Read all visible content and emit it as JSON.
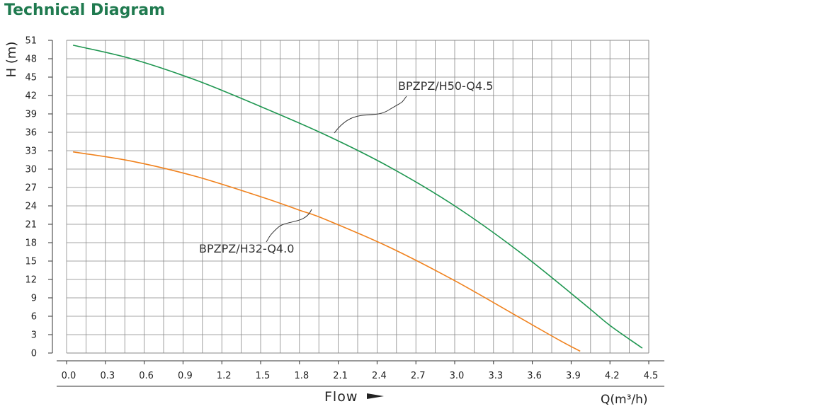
{
  "title": "Technical Diagram",
  "colors": {
    "title": "#1f7a4f",
    "grid": "#888888",
    "series_green": "#1e9650",
    "series_orange": "#f0821e"
  },
  "chart_data": {
    "type": "line",
    "title": "Technical Diagram",
    "ylabel": "H (m)",
    "xlabel": "Flow",
    "x_unit": "Q(m³/h)",
    "x_tick_labels": [
      "0.0",
      "0.3",
      "0.6",
      "0.9",
      "1.2",
      "1.5",
      "1.8",
      "2.1",
      "2.4",
      "2.7",
      "3.0",
      "3.3",
      "3.6",
      "3.9",
      "4.2",
      "4.5"
    ],
    "y_tick_labels": [
      "0",
      "3",
      "6",
      "9",
      "12",
      "15",
      "18",
      "21",
      "24",
      "27",
      "30",
      "33",
      "36",
      "39",
      "42",
      "45",
      "48",
      "51"
    ],
    "xlim": [
      0,
      4.5
    ],
    "ylim": [
      0,
      51
    ],
    "grid": true,
    "series": [
      {
        "name": "BPZPZ/H50-Q4.5",
        "x": [
          0.05,
          0.5,
          1.0,
          1.5,
          2.0,
          2.5,
          3.0,
          3.5,
          4.0,
          4.2,
          4.45
        ],
        "y": [
          50.2,
          48.0,
          44.5,
          40.2,
          35.6,
          30.3,
          24.0,
          16.5,
          8.0,
          4.5,
          0.8
        ]
      },
      {
        "name": "BPZPZ/H32-Q4.0",
        "x": [
          0.05,
          0.5,
          1.0,
          1.5,
          1.8,
          2.0,
          2.5,
          3.0,
          3.5,
          3.8,
          3.97
        ],
        "y": [
          32.8,
          31.3,
          28.8,
          25.5,
          23.3,
          21.8,
          17.2,
          11.8,
          5.8,
          2.2,
          0.3
        ]
      }
    ]
  }
}
